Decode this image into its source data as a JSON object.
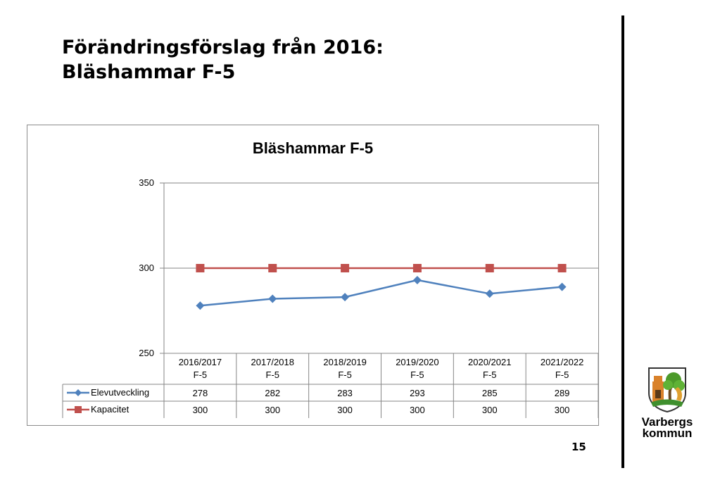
{
  "slide": {
    "title_line1": "Förändringsförslag från 2016:",
    "title_line2": "Bläshammar F-5",
    "page_number": "15"
  },
  "logo": {
    "line1": "Varbergs",
    "line2": "kommun"
  },
  "chart_data": {
    "type": "line",
    "title": "Bläshammar F-5",
    "categories": [
      "2016/2017\nF-5",
      "2017/2018\nF-5",
      "2018/2019\nF-5",
      "2019/2020\nF-5",
      "2020/2021\nF-5",
      "2021/2022\nF-5"
    ],
    "series": [
      {
        "name": "Elevutveckling",
        "values": [
          278,
          282,
          283,
          293,
          285,
          289
        ],
        "color": "#4f81bd",
        "marker": "diamond"
      },
      {
        "name": "Kapacitet",
        "values": [
          300,
          300,
          300,
          300,
          300,
          300
        ],
        "color": "#c0504d",
        "marker": "square"
      }
    ],
    "ylim": [
      250,
      350
    ],
    "yticks": [
      250,
      300,
      350
    ],
    "grid": true,
    "legend": "data-table"
  }
}
